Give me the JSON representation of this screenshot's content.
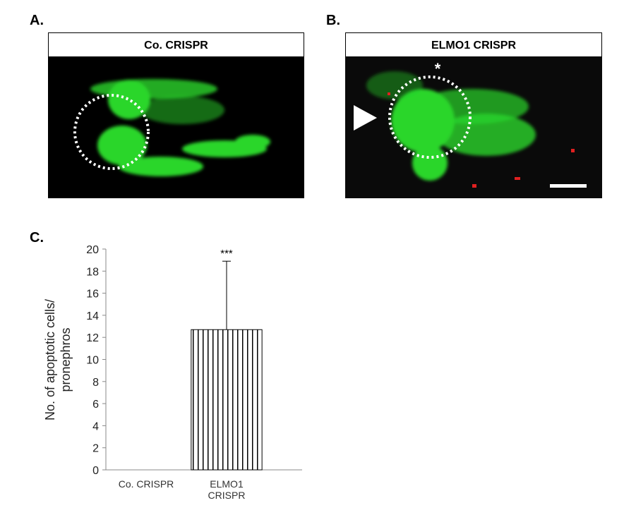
{
  "panels": [
    {
      "label": "A.",
      "title": "Co. CRISPR"
    },
    {
      "label": "B.",
      "title": "ELMO1 CRISPR",
      "annotation": "*"
    }
  ],
  "chart_label": "C.",
  "chart_data": {
    "type": "bar",
    "y_label": "No. of apoptotic cells/ pronephros",
    "categories": [
      "Co. CRISPR",
      "ELMO1 CRISPR"
    ],
    "values": [
      0,
      12.7
    ],
    "errors": [
      0,
      6.2
    ],
    "annotations": [
      {
        "category": "ELMO1 CRISPR",
        "text": "***"
      }
    ],
    "ylim": [
      0,
      20
    ],
    "yticks": [
      0,
      2,
      4,
      6,
      8,
      10,
      12,
      14,
      16,
      18,
      20
    ]
  }
}
